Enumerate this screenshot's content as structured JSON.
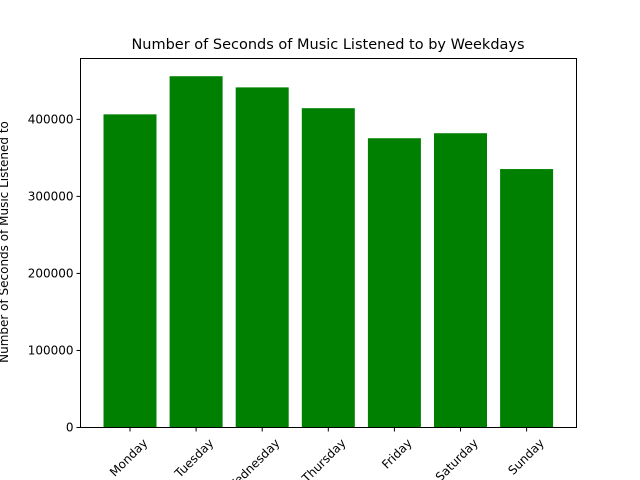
{
  "chart_data": {
    "type": "bar",
    "title": "Number of Seconds of Music Listened to by Weekdays",
    "xlabel": "",
    "ylabel": "Number of Seconds of Music Listened to",
    "categories": [
      "Monday",
      "Tuesday",
      "Wednesday",
      "Thursday",
      "Friday",
      "Saturday",
      "Sunday"
    ],
    "values": [
      406500,
      456000,
      441500,
      414500,
      375500,
      382000,
      335500
    ],
    "ylim": [
      0,
      479000
    ],
    "yticks": [
      0,
      100000,
      200000,
      300000,
      400000
    ],
    "ytick_labels": [
      "0",
      "100000",
      "200000",
      "300000",
      "400000"
    ],
    "bar_color": "#008000",
    "grid": false,
    "legend": "none"
  }
}
